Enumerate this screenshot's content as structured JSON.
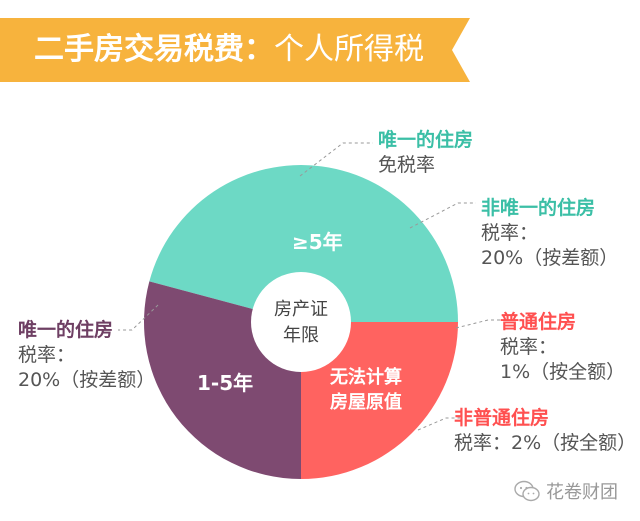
{
  "header": {
    "title_main": "二手房交易税费：",
    "title_sub": "个人所得税",
    "color": "#F7B33D"
  },
  "diagram": {
    "center_label": [
      "房产证",
      "年限"
    ],
    "segments": [
      {
        "id": "ge5",
        "label": "≥5年",
        "color": "#6DD9C5"
      },
      {
        "id": "1to5",
        "label": "1-5年",
        "color": "#7E4A71"
      },
      {
        "id": "unknown",
        "label": [
          "无法计算",
          "房屋原值"
        ],
        "color": "#FF6360"
      }
    ],
    "callouts": {
      "only_home_exempt": {
        "title": "唯一的住房",
        "line1": "免税率",
        "color": "#3BBFA6"
      },
      "not_only_home": {
        "title": "非唯一的住房",
        "line1": "税率：",
        "line2": "20%（按差额）",
        "color": "#3BBFA6"
      },
      "only_home_1to5": {
        "title": "唯一的住房",
        "line1": "税率：",
        "line2": "20%（按差额）",
        "color": "#6E3F63"
      },
      "ordinary_home": {
        "title": "普通住房",
        "line1": "税率：",
        "line2": "1%（按全额）",
        "color": "#FF5050"
      },
      "non_ordinary_home": {
        "title": "非普通住房",
        "line1": "税率：2%（按全额）",
        "color": "#FF5050"
      }
    }
  },
  "watermark": {
    "text": "花卷财团",
    "icon": "wechat-icon"
  }
}
